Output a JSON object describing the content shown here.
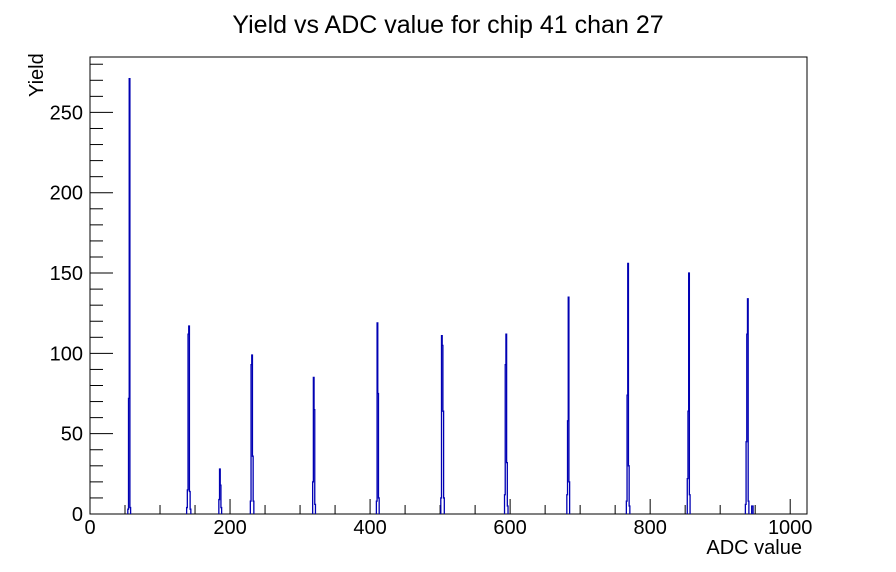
{
  "title": "Yield vs ADC value for chip 41 chan 27",
  "axes": {
    "x_label": "ADC value",
    "y_label": "Yield"
  },
  "chart_data": {
    "type": "bar",
    "style": "root-histogram-step-outline",
    "title": "Yield vs ADC value for chip 41 chan 27",
    "xlabel": "ADC value",
    "ylabel": "Yield",
    "xlim": [
      0,
      1024
    ],
    "ylim": [
      0,
      284.5
    ],
    "x_ticks": [
      0,
      200,
      400,
      600,
      800,
      1000
    ],
    "x_minor_step": 50,
    "x_major_step": 200,
    "y_ticks": [
      0,
      50,
      100,
      150,
      200,
      250
    ],
    "y_minor_step": 10,
    "y_major_step": 50,
    "grid": false,
    "legend": false,
    "line_color": "#0000b3",
    "frame_color": "#000000",
    "peaks": [
      {
        "adc": 56,
        "yield": 271
      },
      {
        "adc": 141,
        "yield": 117
      },
      {
        "adc": 185,
        "yield": 28
      },
      {
        "adc": 231,
        "yield": 99
      },
      {
        "adc": 319,
        "yield": 85
      },
      {
        "adc": 410,
        "yield": 119
      },
      {
        "adc": 502,
        "yield": 111
      },
      {
        "adc": 594,
        "yield": 112
      },
      {
        "adc": 683,
        "yield": 135
      },
      {
        "adc": 768,
        "yield": 156
      },
      {
        "adc": 855,
        "yield": 150
      },
      {
        "adc": 939,
        "yield": 134
      }
    ],
    "bin_clusters": [
      [
        [
          54,
          3
        ],
        [
          55,
          72
        ],
        [
          56,
          271
        ],
        [
          57,
          4
        ]
      ],
      [
        [
          138,
          4
        ],
        [
          139,
          15
        ],
        [
          140,
          112
        ],
        [
          141,
          117
        ],
        [
          142,
          14
        ],
        [
          143,
          3
        ]
      ],
      [
        [
          184,
          9
        ],
        [
          185,
          28
        ],
        [
          186,
          18
        ],
        [
          187,
          4
        ]
      ],
      [
        [
          229,
          8
        ],
        [
          230,
          93
        ],
        [
          231,
          99
        ],
        [
          232,
          36
        ],
        [
          233,
          8
        ]
      ],
      [
        [
          318,
          20
        ],
        [
          319,
          85
        ],
        [
          320,
          65
        ],
        [
          321,
          6
        ]
      ],
      [
        [
          409,
          8
        ],
        [
          410,
          119
        ],
        [
          411,
          75
        ],
        [
          412,
          10
        ]
      ],
      [
        [
          501,
          10
        ],
        [
          502,
          111
        ],
        [
          503,
          105
        ],
        [
          504,
          64
        ],
        [
          505,
          10
        ]
      ],
      [
        [
          592,
          12
        ],
        [
          593,
          93
        ],
        [
          594,
          112
        ],
        [
          595,
          32
        ],
        [
          596,
          5
        ]
      ],
      [
        [
          681,
          12
        ],
        [
          682,
          58
        ],
        [
          683,
          135
        ],
        [
          684,
          20
        ]
      ],
      [
        [
          766,
          8
        ],
        [
          767,
          74
        ],
        [
          768,
          156
        ],
        [
          769,
          30
        ],
        [
          770,
          5
        ]
      ],
      [
        [
          853,
          22
        ],
        [
          854,
          64
        ],
        [
          855,
          150
        ],
        [
          856,
          12
        ]
      ],
      [
        [
          936,
          6
        ],
        [
          937,
          45
        ],
        [
          938,
          112
        ],
        [
          939,
          134
        ],
        [
          940,
          8
        ]
      ],
      [
        [
          945,
          5
        ],
        [
          946,
          5
        ]
      ]
    ]
  }
}
